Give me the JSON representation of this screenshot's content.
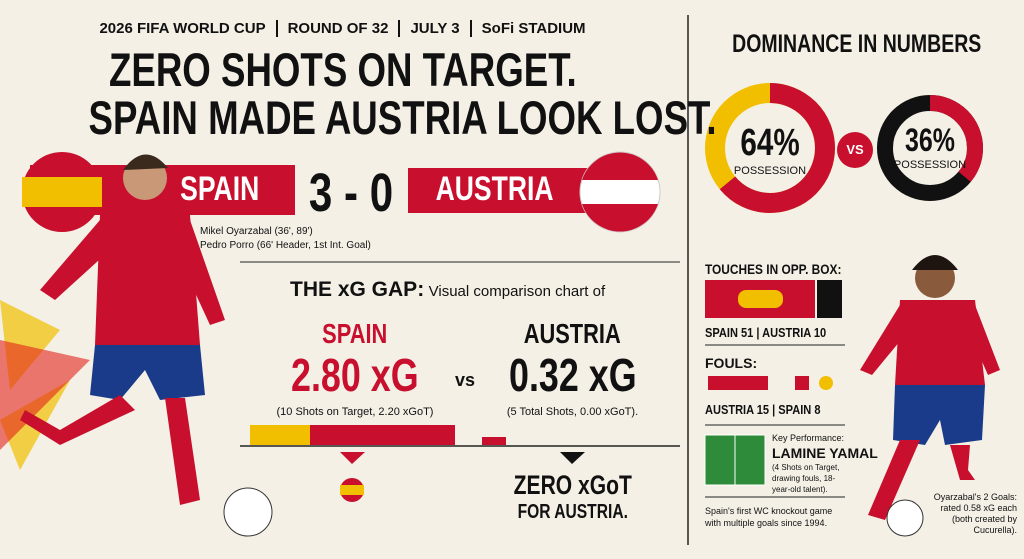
{
  "header": {
    "items": [
      "2026 FIFA WORLD CUP",
      "ROUND OF 32",
      "JULY 3",
      "SoFi STADIUM"
    ]
  },
  "headline": {
    "lines": [
      "ZERO SHOTS ON TARGET.",
      "SPAIN MADE AUSTRIA LOOK LOST."
    ]
  },
  "score": {
    "home": "SPAIN",
    "result": "3 - 0",
    "away": "AUSTRIA",
    "scorers": [
      "Mikel Oyarzabal (36', 89')",
      "Pedro Porro (66' Header, 1st Int. Goal)"
    ]
  },
  "xg": {
    "title": "THE xG GAP:",
    "subtitle": "Visual comparison chart of",
    "vs": "vs",
    "teams": [
      {
        "name": "SPAIN",
        "value": "2.80 xG",
        "detail": "(10 Shots on Target, 2.20 xGoT)"
      },
      {
        "name": "AUSTRIA",
        "value": "0.32 xG",
        "detail": "(5 Total Shots, 0.00 xGoT)."
      }
    ],
    "callout": [
      "ZERO xGoT",
      "FOR AUSTRIA."
    ]
  },
  "dominance": {
    "title": "DOMINANCE IN NUMBERS",
    "vs": "VS",
    "possession": [
      {
        "value": 64,
        "label": "64%",
        "caption": "POSSESSION"
      },
      {
        "value": 36,
        "label": "36%",
        "caption": "POSSESSION"
      }
    ]
  },
  "touches": {
    "title": "TOUCHES IN OPP. BOX:",
    "summary": "SPAIN 51 | AUSTRIA 10"
  },
  "fouls": {
    "title": "FOULS:",
    "summary": "AUSTRIA 15 | SPAIN 8"
  },
  "key_performance": {
    "label": "Key Performance:",
    "player": "LAMINE YAMAL",
    "detail": "(4 Shots on Target, drawing fouls, 18-year-old talent)."
  },
  "notes": [
    "Spain's first WC knockout game with multiple goals since 1994.",
    "Oyarzabal's 2 Goals: rated 0.58 xG each (both created by Cucurella)."
  ]
}
